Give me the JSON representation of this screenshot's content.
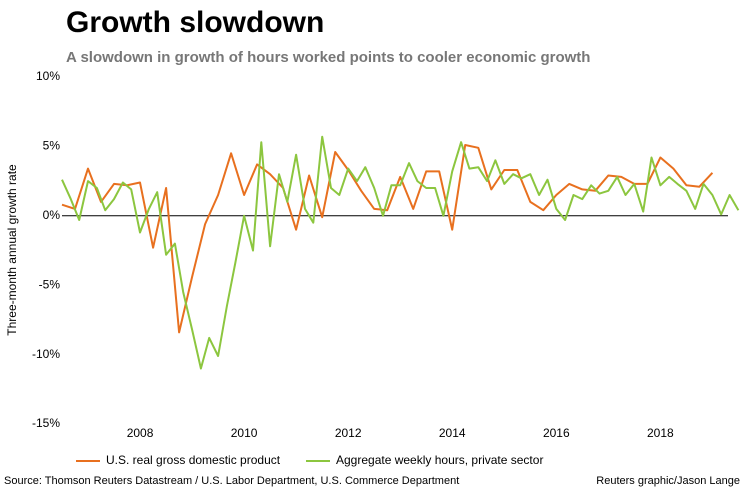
{
  "chart_data": {
    "type": "line",
    "title": "Growth slowdown",
    "subtitle": "A slowdown in growth of hours worked points to cooler economic growth",
    "y_label": "Three-month annual growth rate",
    "source": "Source: Thomson Reuters Datastream / U.S. Labor Department, U.S. Commerce Department",
    "credit": "Reuters graphic/Jason Lange",
    "xlim": [
      2006.5,
      2019.3
    ],
    "xticks": [
      2008,
      2010,
      2012,
      2014,
      2016,
      2018
    ],
    "ylim": [
      -15,
      10
    ],
    "yticks": [
      {
        "value": -15,
        "label": "-15%"
      },
      {
        "value": -10,
        "label": "-10%"
      },
      {
        "value": -5,
        "label": "-5%"
      },
      {
        "value": 0,
        "label": "0%"
      },
      {
        "value": 5,
        "label": "5%"
      },
      {
        "value": 10,
        "label": "10%"
      }
    ],
    "series": [
      {
        "name": "U.S. real gross domestic product",
        "color": "#e8701f",
        "x": [
          2006.5,
          2006.75,
          2007.0,
          2007.25,
          2007.5,
          2007.75,
          2008.0,
          2008.25,
          2008.5,
          2008.75,
          2009.0,
          2009.25,
          2009.5,
          2009.75,
          2010.0,
          2010.25,
          2010.5,
          2010.75,
          2011.0,
          2011.25,
          2011.5,
          2011.75,
          2012.0,
          2012.25,
          2012.5,
          2012.75,
          2013.0,
          2013.25,
          2013.5,
          2013.75,
          2014.0,
          2014.25,
          2014.5,
          2014.75,
          2015.0,
          2015.25,
          2015.5,
          2015.75,
          2016.0,
          2016.25,
          2016.5,
          2016.75,
          2017.0,
          2017.25,
          2017.5,
          2017.75,
          2018.0,
          2018.25,
          2018.5,
          2018.75,
          2019.0
        ],
        "values": [
          0.8,
          0.5,
          3.4,
          1.0,
          2.3,
          2.2,
          2.4,
          -2.3,
          2.0,
          -8.4,
          -4.4,
          -0.6,
          1.5,
          4.5,
          1.5,
          3.7,
          3.0,
          2.0,
          -1.0,
          2.9,
          -0.1,
          4.6,
          3.3,
          1.8,
          0.5,
          0.4,
          2.8,
          0.5,
          3.2,
          3.2,
          -1.0,
          5.1,
          4.9,
          1.9,
          3.3,
          3.3,
          1.0,
          0.4,
          1.5,
          2.3,
          1.9,
          1.8,
          2.9,
          2.8,
          2.3,
          2.3,
          4.2,
          3.4,
          2.2,
          2.1,
          3.1
        ]
      },
      {
        "name": "Aggregate weekly hours, private sector",
        "color": "#8cc63f",
        "x": [
          2006.5,
          2006.67,
          2006.83,
          2007.0,
          2007.17,
          2007.33,
          2007.5,
          2007.67,
          2007.83,
          2008.0,
          2008.17,
          2008.33,
          2008.5,
          2008.67,
          2008.83,
          2009.0,
          2009.17,
          2009.33,
          2009.5,
          2009.67,
          2009.83,
          2010.0,
          2010.17,
          2010.33,
          2010.5,
          2010.67,
          2010.83,
          2011.0,
          2011.17,
          2011.33,
          2011.5,
          2011.67,
          2011.83,
          2012.0,
          2012.17,
          2012.33,
          2012.5,
          2012.67,
          2012.83,
          2013.0,
          2013.17,
          2013.33,
          2013.5,
          2013.67,
          2013.83,
          2014.0,
          2014.17,
          2014.33,
          2014.5,
          2014.67,
          2014.83,
          2015.0,
          2015.17,
          2015.33,
          2015.5,
          2015.67,
          2015.83,
          2016.0,
          2016.17,
          2016.33,
          2016.5,
          2016.67,
          2016.83,
          2017.0,
          2017.17,
          2017.33,
          2017.5,
          2017.67,
          2017.83,
          2018.0,
          2018.17,
          2018.33,
          2018.5,
          2018.67,
          2018.83,
          2019.0,
          2019.17,
          2019.33,
          2019.5
        ],
        "values": [
          2.6,
          1.2,
          -0.3,
          2.5,
          2.0,
          0.4,
          1.2,
          2.4,
          1.9,
          -1.2,
          0.5,
          1.7,
          -2.8,
          -2.0,
          -5.5,
          -8.2,
          -11.0,
          -8.8,
          -10.1,
          -6.5,
          -3.4,
          0.0,
          -2.5,
          5.3,
          -2.2,
          3.0,
          1.0,
          4.4,
          0.5,
          -0.5,
          5.7,
          2.0,
          1.5,
          3.4,
          2.5,
          3.5,
          2.0,
          0.0,
          2.2,
          2.2,
          3.8,
          2.5,
          2.0,
          2.0,
          0.0,
          3.2,
          5.3,
          3.4,
          3.5,
          2.5,
          4.0,
          2.3,
          3.0,
          2.7,
          3.0,
          1.5,
          2.6,
          0.5,
          -0.3,
          1.5,
          1.2,
          2.2,
          1.6,
          1.8,
          2.8,
          1.5,
          2.3,
          0.3,
          4.2,
          2.2,
          2.8,
          2.3,
          1.8,
          0.5,
          2.3,
          1.5,
          0.1,
          1.5,
          0.4
        ]
      }
    ]
  }
}
